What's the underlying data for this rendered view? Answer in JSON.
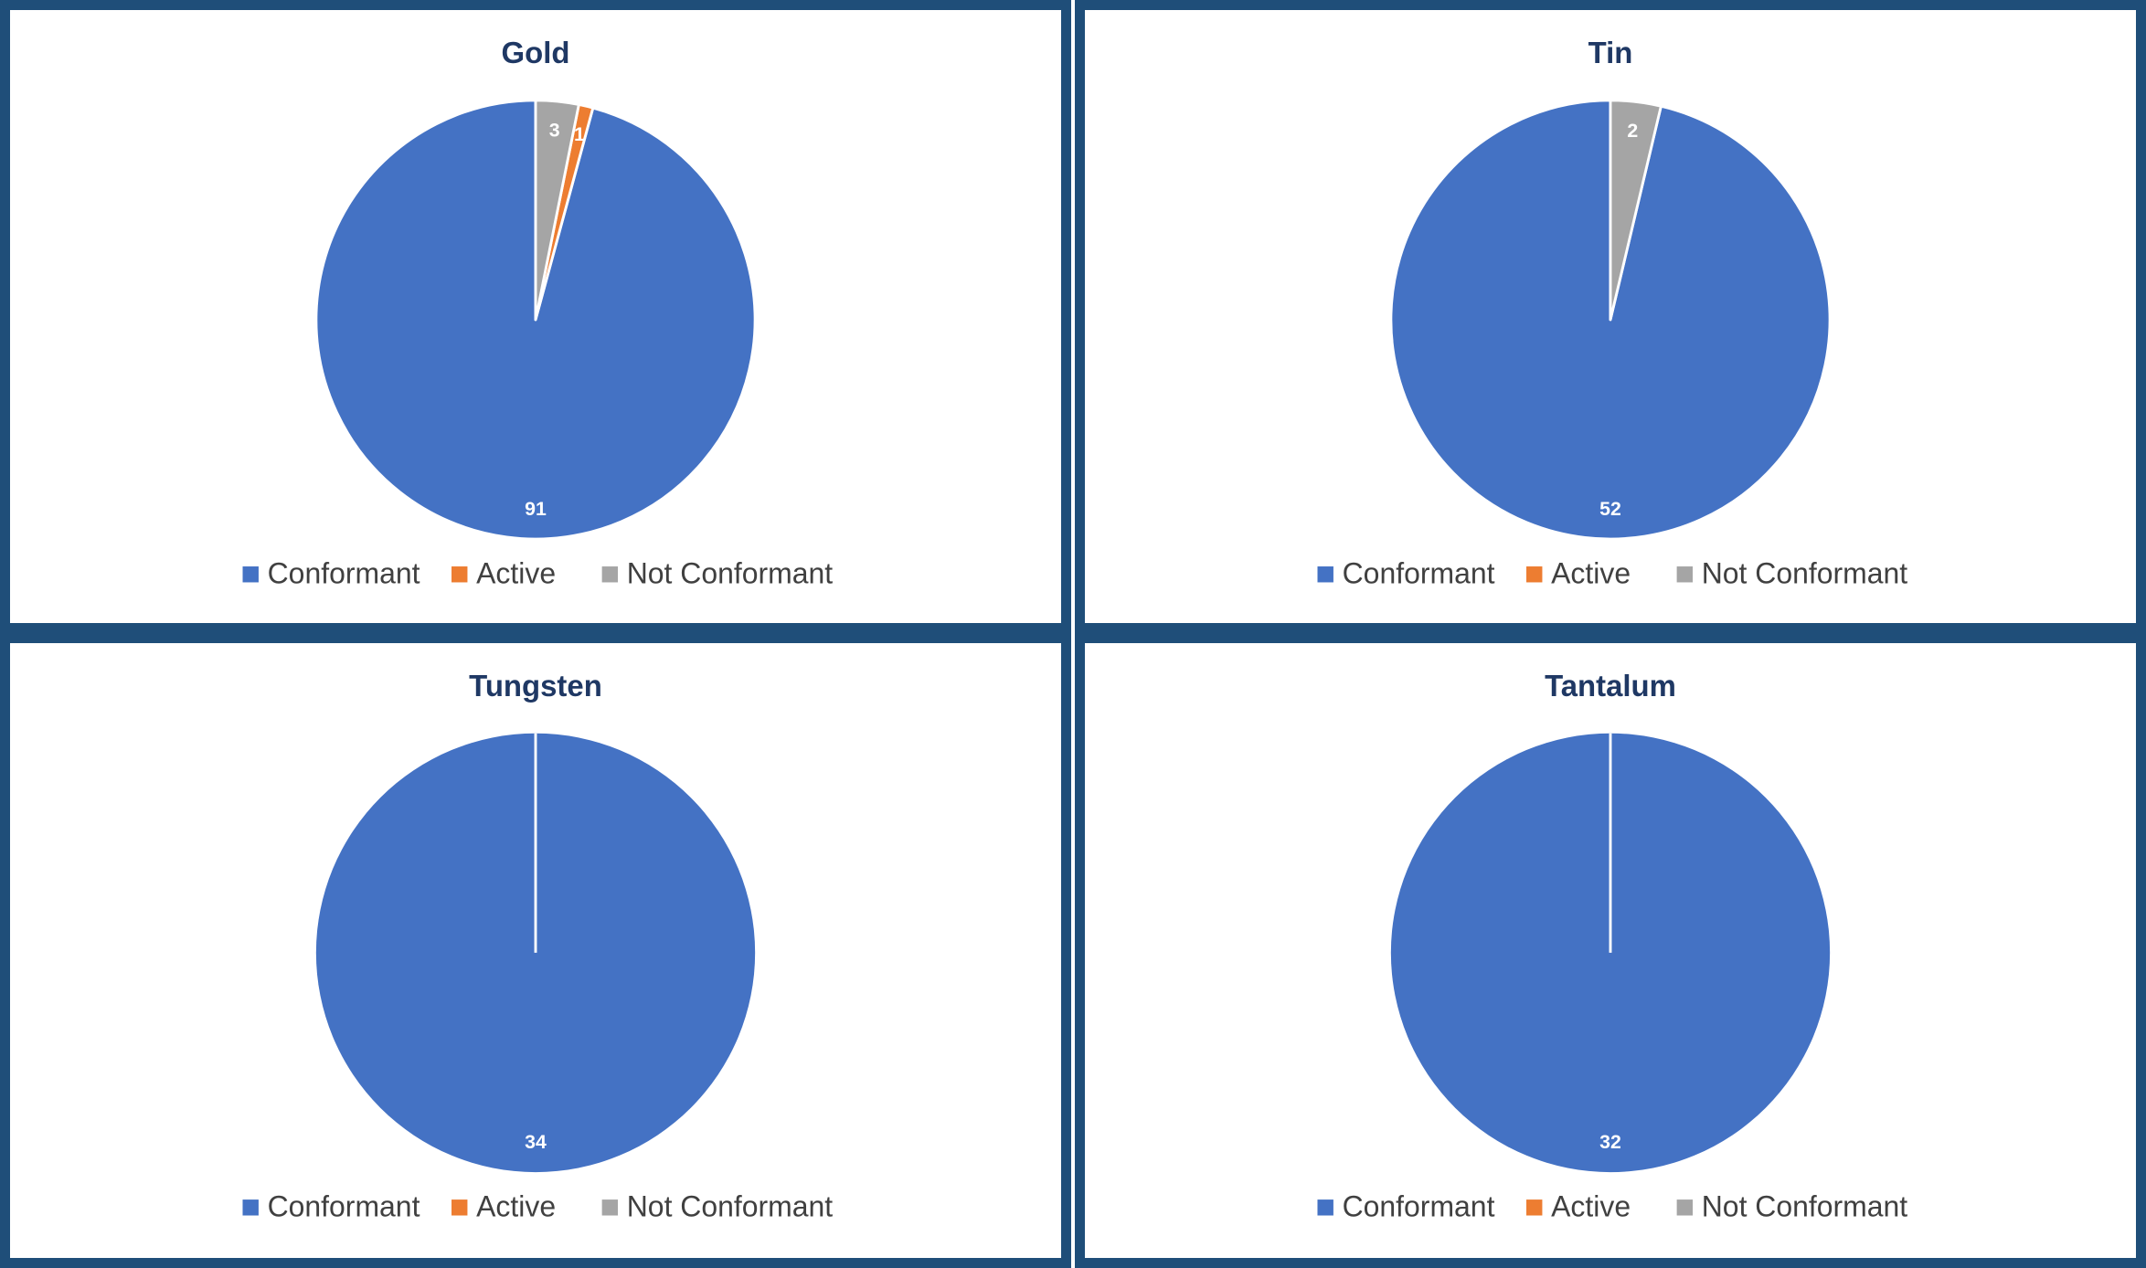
{
  "chart_data": [
    {
      "type": "pie",
      "title": "Gold",
      "categories": [
        "Conformant",
        "Active",
        "Not Conformant"
      ],
      "values": [
        91,
        1,
        3
      ],
      "data_labels": [
        "91",
        "1",
        "3"
      ],
      "colors": [
        "#4472c4",
        "#ed7d31",
        "#a5a5a5"
      ],
      "legend": "bottom"
    },
    {
      "type": "pie",
      "title": "Tin",
      "categories": [
        "Conformant",
        "Active",
        "Not Conformant"
      ],
      "values": [
        52,
        0,
        2
      ],
      "data_labels": [
        "52",
        "",
        "2"
      ],
      "colors": [
        "#4472c4",
        "#ed7d31",
        "#a5a5a5"
      ],
      "legend": "bottom"
    },
    {
      "type": "pie",
      "title": "Tungsten",
      "categories": [
        "Conformant",
        "Active",
        "Not Conformant"
      ],
      "values": [
        34,
        0,
        0
      ],
      "data_labels": [
        "34",
        "",
        ""
      ],
      "colors": [
        "#4472c4",
        "#ed7d31",
        "#a5a5a5"
      ],
      "legend": "bottom"
    },
    {
      "type": "pie",
      "title": "Tantalum",
      "categories": [
        "Conformant",
        "Active",
        "Not Conformant"
      ],
      "values": [
        32,
        0,
        0
      ],
      "data_labels": [
        "32",
        "",
        ""
      ],
      "colors": [
        "#4472c4",
        "#ed7d31",
        "#a5a5a5"
      ],
      "legend": "bottom"
    }
  ]
}
